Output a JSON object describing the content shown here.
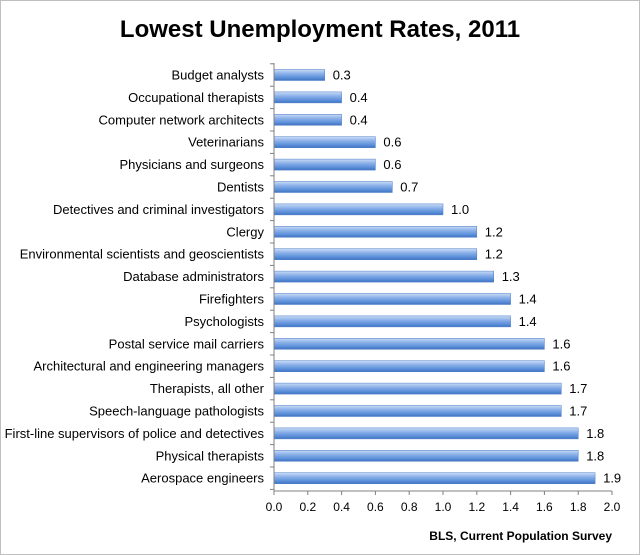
{
  "chart_data": {
    "type": "bar",
    "orientation": "horizontal",
    "title": "Lowest Unemployment Rates, 2011",
    "source": "BLS, Current Population Survey",
    "xlabel": "",
    "ylabel": "",
    "xlim": [
      0,
      2.0
    ],
    "xticks": [
      "0.0",
      "0.2",
      "0.4",
      "0.6",
      "0.8",
      "1.0",
      "1.2",
      "1.4",
      "1.6",
      "1.8",
      "2.0"
    ],
    "grid": false,
    "legend": "none",
    "bar_color": "#5b8fd9",
    "categories": [
      "Budget analysts",
      "Occupational therapists",
      "Computer network architects",
      "Veterinarians",
      "Physicians and surgeons",
      "Dentists",
      "Detectives and criminal investigators",
      "Clergy",
      "Environmental scientists and geoscientists",
      "Database administrators",
      "Firefighters",
      "Psychologists",
      "Postal service mail carriers",
      "Architectural and engineering managers",
      "Therapists, all other",
      "Speech-language pathologists",
      "First-line supervisors of police and detectives",
      "Physical therapists",
      "Aerospace engineers"
    ],
    "values": [
      0.3,
      0.4,
      0.4,
      0.6,
      0.6,
      0.7,
      1.0,
      1.2,
      1.2,
      1.3,
      1.4,
      1.4,
      1.6,
      1.6,
      1.7,
      1.7,
      1.8,
      1.8,
      1.9
    ],
    "value_labels": [
      "0.3",
      "0.4",
      "0.4",
      "0.6",
      "0.6",
      "0.7",
      "1.0",
      "1.2",
      "1.2",
      "1.3",
      "1.4",
      "1.4",
      "1.6",
      "1.6",
      "1.7",
      "1.7",
      "1.8",
      "1.8",
      "1.9"
    ]
  }
}
